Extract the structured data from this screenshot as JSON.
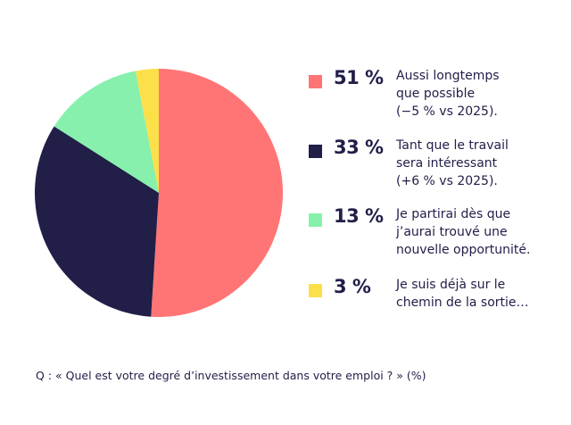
{
  "chart_data": {
    "type": "pie",
    "categories": [
      [
        "Aussi longtemps",
        "que possible",
        "(−5 % vs 2025)."
      ],
      [
        "Tant que le travail",
        "sera intéressant",
        "(+6 % vs 2025)."
      ],
      [
        "Je partirai dès que",
        "j’aurai trouvé une",
        "nouvelle opportunité."
      ],
      [
        "Je suis déjà sur le",
        "chemin de la sortie…"
      ]
    ],
    "values": [
      51,
      33,
      13,
      3
    ],
    "value_labels": [
      "51 %",
      "33 %",
      "13 %",
      "3 %"
    ],
    "colors": [
      "#ff7575",
      "#211e48",
      "#86f0ac",
      "#fce04a"
    ],
    "note": "Q : « Quel est votre degré d’investissement dans votre emploi ? » (%)"
  }
}
